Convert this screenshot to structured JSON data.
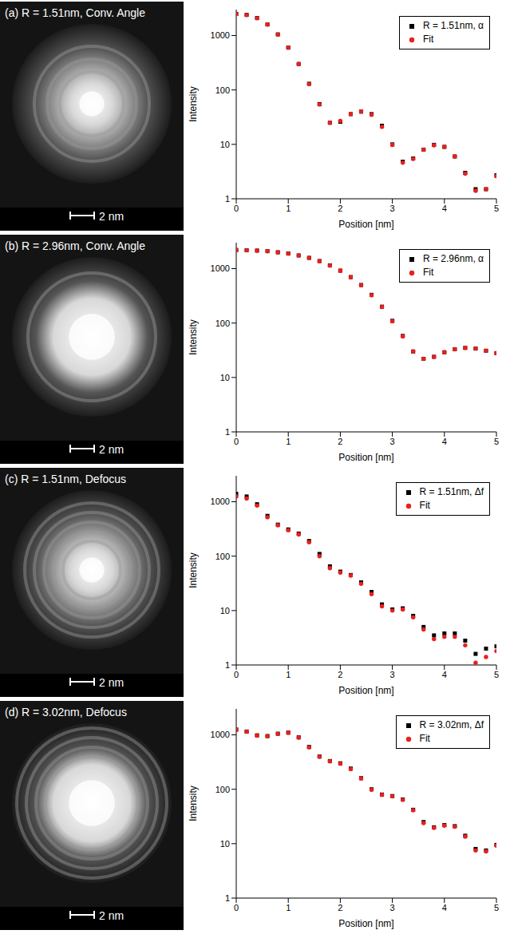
{
  "chart_data": [
    {
      "type": "line",
      "title": "(a) R = 1.51nm, Conv. Angle",
      "annotations": [
        "2 nm"
      ],
      "x_label": "Position [nm]",
      "y_label": "Intensity",
      "log": "y",
      "legend": "upper right",
      "xlim": [
        0,
        5
      ],
      "xticks": [
        0,
        1,
        2,
        3,
        4,
        5
      ],
      "ylim": [
        1,
        3000
      ],
      "yticks": [
        1,
        10,
        100,
        1000
      ],
      "x": [
        0,
        0.2,
        0.4,
        0.6,
        0.8,
        1.0,
        1.2,
        1.4,
        1.6,
        1.8,
        2.0,
        2.2,
        2.4,
        2.6,
        2.8,
        3.0,
        3.2,
        3.4,
        3.6,
        3.8,
        4.0,
        4.2,
        4.4,
        4.6,
        4.8,
        5.0
      ],
      "series": [
        {
          "name": "R = 1.51nm, α",
          "color": "#000000",
          "marker": "square",
          "line_style": "none",
          "values": [
            2500,
            2400,
            2100,
            1600,
            1050,
            600,
            300,
            130,
            55,
            25,
            26,
            36,
            40,
            36,
            22,
            10,
            4.8,
            5.5,
            8,
            9.8,
            9,
            6,
            3,
            1.5,
            1.5,
            2.7
          ]
        },
        {
          "name": "Fit",
          "color": "#e8201e",
          "marker": "circle",
          "line_style": "none",
          "values": [
            2480,
            2380,
            2080,
            1590,
            1040,
            600,
            300,
            128,
            54,
            25,
            27,
            36,
            40,
            35,
            21,
            9.8,
            4.6,
            5.4,
            8,
            9.6,
            9,
            6,
            2.9,
            1.4,
            1.5,
            2.6
          ]
        }
      ]
    },
    {
      "type": "line",
      "title": "(b) R = 2.96nm, Conv. Angle",
      "annotations": [
        "2 nm"
      ],
      "x_label": "Position [nm]",
      "y_label": "Intensity",
      "log": "y",
      "legend": "upper right",
      "xlim": [
        0,
        5
      ],
      "xticks": [
        0,
        1,
        2,
        3,
        4,
        5
      ],
      "ylim": [
        1,
        3000
      ],
      "yticks": [
        1,
        10,
        100,
        1000
      ],
      "x": [
        0,
        0.2,
        0.4,
        0.6,
        0.8,
        1.0,
        1.2,
        1.4,
        1.6,
        1.8,
        2.0,
        2.2,
        2.4,
        2.6,
        2.8,
        3.0,
        3.2,
        3.4,
        3.6,
        3.8,
        4.0,
        4.2,
        4.4,
        4.6,
        4.8,
        5.0
      ],
      "series": [
        {
          "name": "R = 2.96nm, α",
          "color": "#000000",
          "marker": "square",
          "line_style": "none",
          "values": [
            2200,
            2180,
            2150,
            2100,
            2000,
            1900,
            1750,
            1580,
            1380,
            1150,
            920,
            700,
            500,
            330,
            200,
            110,
            58,
            30,
            22,
            24,
            29,
            33,
            35,
            34,
            31,
            28
          ]
        },
        {
          "name": "Fit",
          "color": "#e8201e",
          "marker": "circle",
          "line_style": "none",
          "values": [
            2190,
            2170,
            2140,
            2090,
            2000,
            1890,
            1740,
            1570,
            1370,
            1140,
            910,
            690,
            495,
            325,
            198,
            108,
            57,
            30,
            22,
            24,
            29,
            33,
            35,
            34,
            31,
            28
          ]
        }
      ]
    },
    {
      "type": "line",
      "title": "(c) R = 1.51nm, Defocus",
      "annotations": [
        "2 nm"
      ],
      "x_label": "Position [nm]",
      "y_label": "Intensity",
      "log": "y",
      "legend": "upper right",
      "xlim": [
        0,
        5
      ],
      "xticks": [
        0,
        1,
        2,
        3,
        4,
        5
      ],
      "ylim": [
        1,
        3000
      ],
      "yticks": [
        1,
        10,
        100,
        1000
      ],
      "x": [
        0,
        0.2,
        0.4,
        0.6,
        0.8,
        1.0,
        1.2,
        1.4,
        1.6,
        1.8,
        2.0,
        2.2,
        2.4,
        2.6,
        2.8,
        3.0,
        3.2,
        3.4,
        3.6,
        3.8,
        4.0,
        4.2,
        4.4,
        4.6,
        4.8,
        5.0
      ],
      "series": [
        {
          "name": "R = 1.51nm, Δf",
          "color": "#000000",
          "marker": "square",
          "line_style": "none",
          "values": [
            1400,
            1250,
            900,
            550,
            380,
            310,
            260,
            190,
            110,
            65,
            52,
            45,
            33,
            22,
            13,
            10.5,
            11,
            8,
            5,
            3.5,
            3.8,
            3.8,
            2.8,
            1.6,
            2,
            2.2
          ]
        },
        {
          "name": "Fit",
          "color": "#e8201e",
          "marker": "circle",
          "line_style": "none",
          "values": [
            1250,
            1150,
            850,
            520,
            370,
            300,
            250,
            180,
            100,
            60,
            50,
            44,
            31,
            20,
            12,
            10,
            10.5,
            7.5,
            4.5,
            3,
            3.3,
            3.3,
            2.3,
            1.1,
            1.4,
            1.8
          ]
        }
      ]
    },
    {
      "type": "line",
      "title": "(d) R = 3.02nm, Defocus",
      "annotations": [
        "2 nm"
      ],
      "x_label": "Position [nm]",
      "y_label": "Intensity",
      "log": "y",
      "legend": "upper right",
      "xlim": [
        0,
        5
      ],
      "xticks": [
        0,
        1,
        2,
        3,
        4,
        5
      ],
      "ylim": [
        1,
        3000
      ],
      "yticks": [
        1,
        10,
        100,
        1000
      ],
      "x": [
        0,
        0.2,
        0.4,
        0.6,
        0.8,
        1.0,
        1.2,
        1.4,
        1.6,
        1.8,
        2.0,
        2.2,
        2.4,
        2.6,
        2.8,
        3.0,
        3.2,
        3.4,
        3.6,
        3.8,
        4.0,
        4.2,
        4.4,
        4.6,
        4.8,
        5.0
      ],
      "series": [
        {
          "name": "R = 3.02nm, Δf",
          "color": "#000000",
          "marker": "square",
          "line_style": "none",
          "values": [
            1250,
            1150,
            980,
            950,
            1050,
            1100,
            900,
            600,
            400,
            330,
            300,
            240,
            160,
            100,
            80,
            75,
            65,
            42,
            25,
            20,
            22,
            21,
            14,
            8,
            7.5,
            9.5
          ]
        },
        {
          "name": "Fit",
          "color": "#e8201e",
          "marker": "circle",
          "line_style": "none",
          "values": [
            1240,
            1140,
            970,
            945,
            1040,
            1090,
            890,
            590,
            395,
            325,
            295,
            235,
            158,
            98,
            79,
            74,
            64,
            41,
            24,
            19.5,
            21.5,
            20.5,
            13.5,
            7.5,
            7.2,
            9.2
          ]
        }
      ]
    }
  ]
}
